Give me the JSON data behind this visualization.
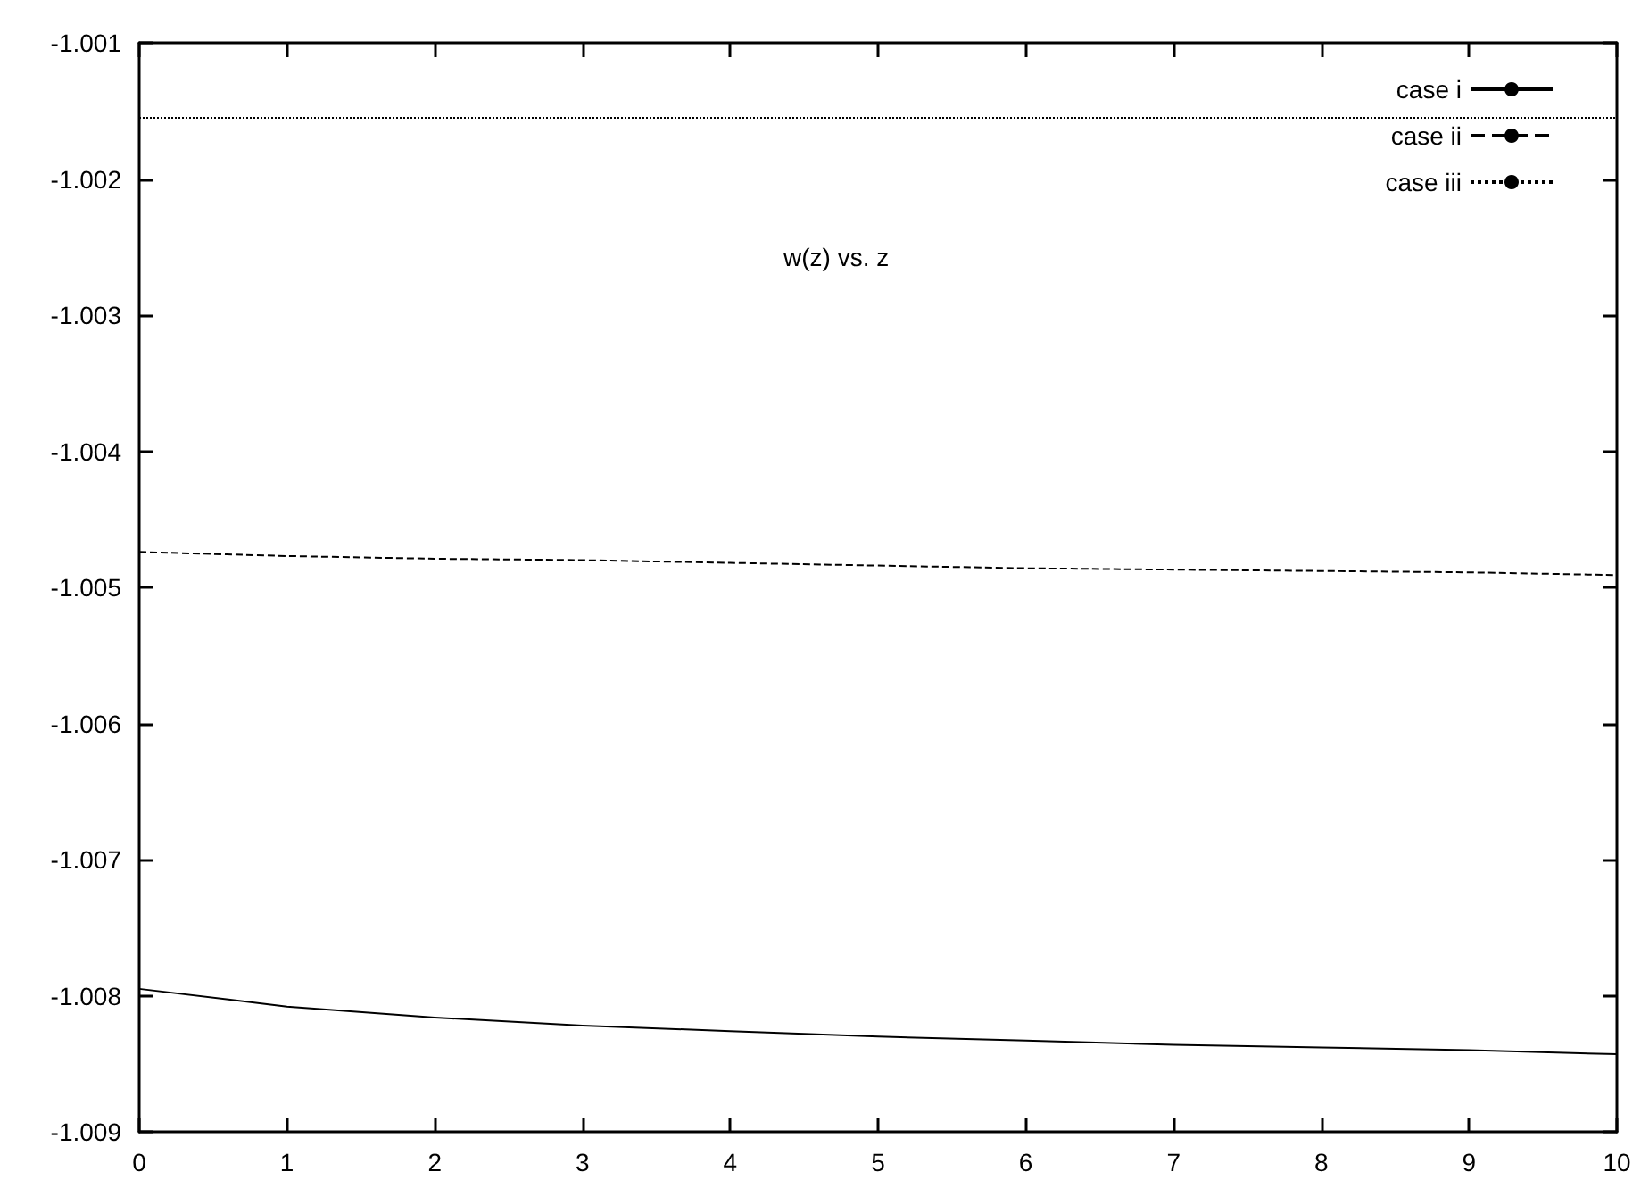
{
  "chart_data": {
    "type": "line",
    "title": "w(z) vs. z",
    "x": [
      0,
      1,
      2,
      3,
      4,
      5,
      6,
      7,
      8,
      9,
      10
    ],
    "xlim": [
      0,
      10
    ],
    "xticks": [
      0,
      1,
      2,
      3,
      4,
      5,
      6,
      7,
      8,
      9,
      10
    ],
    "ylim": [
      -1.009,
      -1.001
    ],
    "yticks": [
      -1.009,
      -1.008,
      -1.007,
      -1.006,
      -1.005,
      -1.004,
      -1.003,
      -1.002,
      -1.001
    ],
    "grid": false,
    "legend": "top right",
    "marker": "none",
    "series": [
      {
        "name": "case i",
        "color": "#000000",
        "line_style": "solid",
        "values": [
          -1.00795,
          -1.00808,
          -1.00816,
          -1.00822,
          -1.00826,
          -1.0083,
          -1.00833,
          -1.00836,
          -1.00838,
          -1.0084,
          -1.00843
        ]
      },
      {
        "name": "case ii",
        "color": "#000000",
        "line_style": "dashed",
        "values": [
          -1.00474,
          -1.00477,
          -1.00479,
          -1.0048,
          -1.00482,
          -1.00484,
          -1.00486,
          -1.00487,
          -1.00488,
          -1.00489,
          -1.00491
        ]
      },
      {
        "name": "case iii",
        "color": "#000000",
        "line_style": "dotted",
        "values": [
          -1.00155,
          -1.00155,
          -1.00155,
          -1.00155,
          -1.00155,
          -1.00155,
          -1.00155,
          -1.00155,
          -1.00155,
          -1.00155,
          -1.00155
        ]
      }
    ]
  }
}
